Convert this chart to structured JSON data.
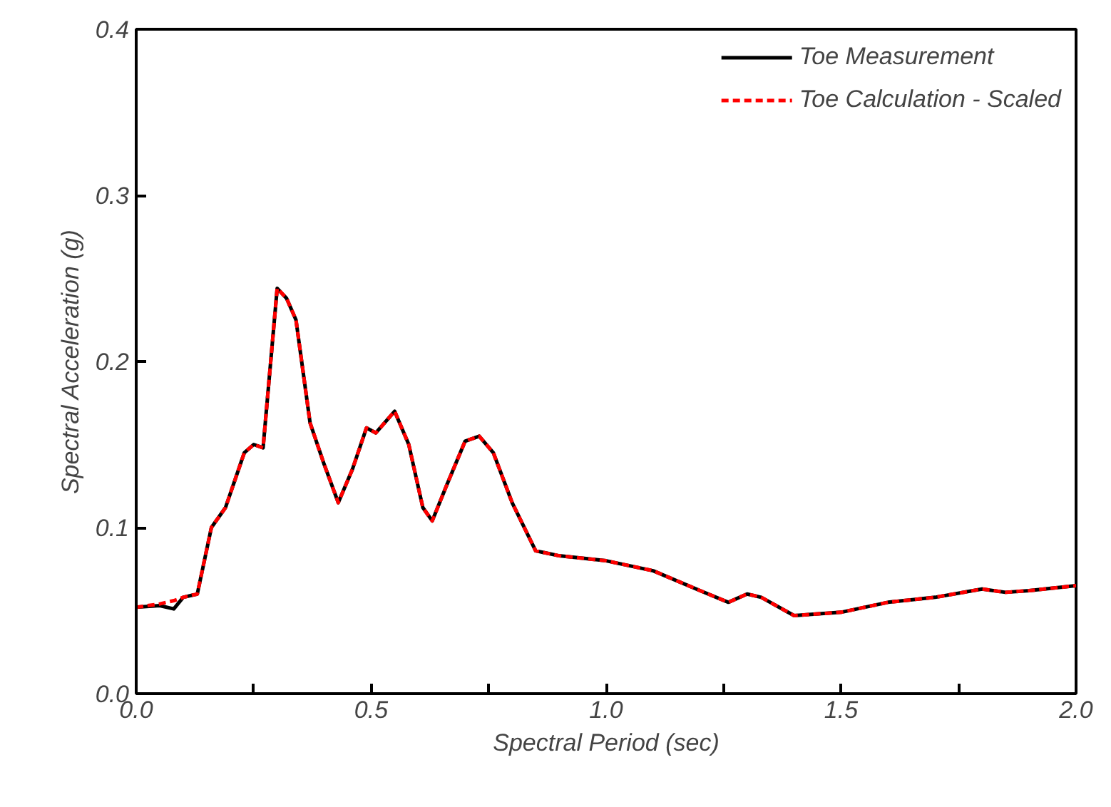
{
  "chart_data": {
    "type": "line",
    "xlabel": "Spectral Period (sec)",
    "ylabel": "Spectral Acceleration (g)",
    "x": [
      0.0,
      0.05,
      0.08,
      0.1,
      0.13,
      0.16,
      0.19,
      0.23,
      0.25,
      0.27,
      0.3,
      0.32,
      0.34,
      0.37,
      0.4,
      0.43,
      0.46,
      0.49,
      0.51,
      0.55,
      0.58,
      0.61,
      0.63,
      0.66,
      0.7,
      0.73,
      0.76,
      0.8,
      0.85,
      0.9,
      1.0,
      1.1,
      1.2,
      1.26,
      1.3,
      1.33,
      1.4,
      1.5,
      1.6,
      1.7,
      1.8,
      1.85,
      1.9,
      2.0
    ],
    "series": [
      {
        "name": "Toe Measurement",
        "color": "#000000",
        "line_style": "solid",
        "values": [
          0.052,
          0.053,
          0.051,
          0.058,
          0.06,
          0.1,
          0.112,
          0.145,
          0.15,
          0.148,
          0.244,
          0.238,
          0.225,
          0.163,
          0.138,
          0.115,
          0.135,
          0.16,
          0.157,
          0.17,
          0.15,
          0.112,
          0.104,
          0.125,
          0.152,
          0.155,
          0.145,
          0.115,
          0.086,
          0.083,
          0.08,
          0.074,
          0.062,
          0.055,
          0.06,
          0.058,
          0.047,
          0.049,
          0.055,
          0.058,
          0.063,
          0.061,
          0.062,
          0.065
        ]
      },
      {
        "name": "Toe Calculation - Scaled",
        "color": "#ff0000",
        "line_style": "dashed",
        "values": [
          0.052,
          0.054,
          0.056,
          0.058,
          0.06,
          0.1,
          0.112,
          0.145,
          0.15,
          0.148,
          0.244,
          0.238,
          0.225,
          0.163,
          0.138,
          0.115,
          0.135,
          0.16,
          0.157,
          0.17,
          0.15,
          0.112,
          0.104,
          0.125,
          0.152,
          0.155,
          0.145,
          0.115,
          0.086,
          0.083,
          0.08,
          0.074,
          0.062,
          0.055,
          0.06,
          0.058,
          0.047,
          0.049,
          0.055,
          0.058,
          0.063,
          0.061,
          0.062,
          0.065
        ]
      }
    ],
    "xlim": [
      0,
      2
    ],
    "ylim": [
      0,
      0.4
    ],
    "xticks": [
      {
        "value": 0,
        "label": "0.0"
      },
      {
        "value": 0.25,
        "label": null
      },
      {
        "value": 0.5,
        "label": "0.5"
      },
      {
        "value": 0.75,
        "label": null
      },
      {
        "value": 1,
        "label": "1.0"
      },
      {
        "value": 1.25,
        "label": null
      },
      {
        "value": 1.5,
        "label": "1.5"
      },
      {
        "value": 1.75,
        "label": null
      },
      {
        "value": 2,
        "label": "2.0"
      }
    ],
    "yticks": [
      {
        "value": 0,
        "label": "0.0"
      },
      {
        "value": 0.1,
        "label": "0.1"
      },
      {
        "value": 0.2,
        "label": "0.2"
      },
      {
        "value": 0.3,
        "label": "0.3"
      },
      {
        "value": 0.4,
        "label": "0.4"
      }
    ],
    "grid": false,
    "legend": "top right"
  }
}
